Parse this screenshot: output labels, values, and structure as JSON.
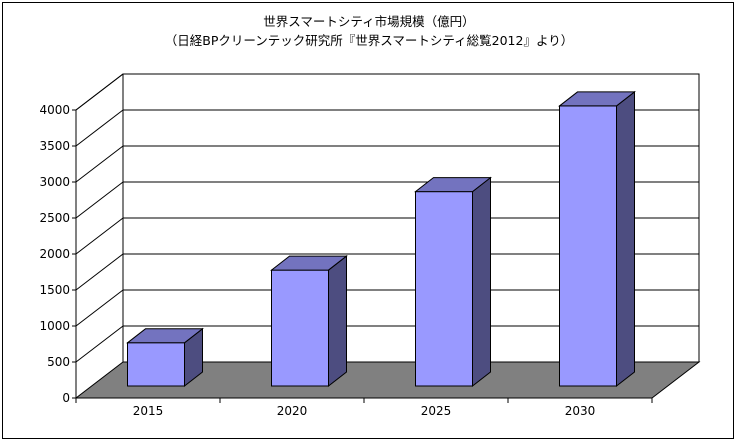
{
  "chart_data": {
    "type": "bar",
    "title": "世界スマートシティ市場規模（億円）",
    "subtitle": "（日経BPクリーンテック研究所『世界スマートシティ総覧2012』より）",
    "categories": [
      "2015",
      "2020",
      "2025",
      "2030"
    ],
    "values": [
      600,
      1610,
      2700,
      3890
    ],
    "yticks": [
      0,
      500,
      1000,
      1500,
      2000,
      2500,
      3000,
      3500,
      4000
    ],
    "ylim": [
      0,
      4000
    ],
    "grid": true,
    "legend": "none",
    "colors": {
      "bar_front": "#9999ff",
      "bar_side": "#4d4d80",
      "bar_top": "#7373bf",
      "floor": "#808080",
      "grid": "#000000"
    }
  }
}
